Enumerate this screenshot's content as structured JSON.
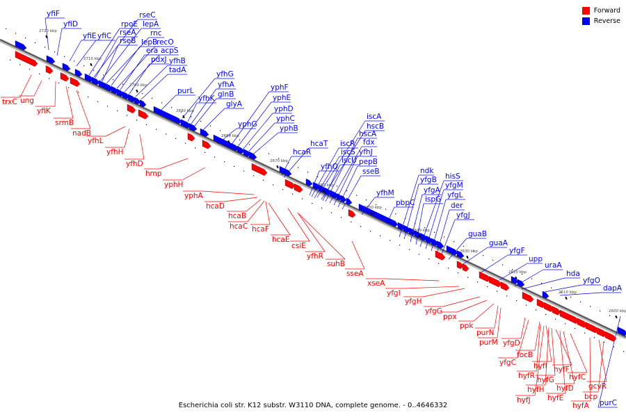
{
  "legend": {
    "forward_label": "Forward",
    "reverse_label": "Reverse",
    "forward_color": "#ff0000",
    "reverse_color": "#0000ff"
  },
  "caption": "Escherichia coli str. K12 substr. W3110 DNA, complete genome. - 0..4646332",
  "ticks": [
    {
      "label": "2720 kbp",
      "kbp": 2720
    },
    {
      "label": "2710 kbp",
      "kbp": 2710
    },
    {
      "label": "2700 kbp",
      "kbp": 2700
    },
    {
      "label": "2690 kbp",
      "kbp": 2690
    },
    {
      "label": "2680 kbp",
      "kbp": 2680
    },
    {
      "label": "2670 kbp",
      "kbp": 2670
    },
    {
      "label": "2660 kbp",
      "kbp": 2660
    },
    {
      "label": "2650 kbp",
      "kbp": 2650
    },
    {
      "label": "2640 kbp",
      "kbp": 2640
    },
    {
      "label": "2630 kbp",
      "kbp": 2630
    },
    {
      "label": "2620 kbp",
      "kbp": 2620
    },
    {
      "label": "2610 kbp",
      "kbp": 2610
    },
    {
      "label": "2600 kbp",
      "kbp": 2600
    }
  ],
  "reverse_genes": [
    "yfiF",
    "yfiD",
    "yfiE",
    "yfiC",
    "rpoE",
    "rseC",
    "rseA",
    "lepA",
    "rseB",
    "rnc",
    "lepB",
    "recO",
    "era",
    "acpS",
    "pdxJ",
    "yfhB",
    "tadA",
    "purL",
    "yfhG",
    "yfhK",
    "yfhA",
    "glnB",
    "glyA",
    "yphF",
    "yphE",
    "yphG",
    "yphD",
    "yphC",
    "yphB",
    "hcaT",
    "hcaR",
    "iscA",
    "hscB",
    "hscA",
    "iscR",
    "fdx",
    "iscS",
    "yfhJ",
    "yfhQ",
    "iscU",
    "pepB",
    "sseB",
    "ndk",
    "yfhM",
    "yfgB",
    "hisS",
    "pbpC",
    "yfgA",
    "yfgM",
    "ispG",
    "yfgL",
    "der",
    "yfgJ",
    "guaB",
    "guaA",
    "yfgF",
    "upp",
    "uraA",
    "hda",
    "yfgO",
    "dapA",
    "purC"
  ],
  "forward_genes": [
    "trxC",
    "ung",
    "yfiK",
    "srmB",
    "nadB",
    "yfhL",
    "yfhH",
    "yfhD",
    "hmp",
    "yphH",
    "yphA",
    "hcaD",
    "hcaB",
    "hcaC",
    "hcaF",
    "hcaE",
    "csiE",
    "yfhR",
    "suhB",
    "sseA",
    "xseA",
    "yfgI",
    "yfgH",
    "yfgG",
    "ppx",
    "ppk",
    "purN",
    "purM",
    "yfgD",
    "focB",
    "yfgC",
    "hyfI",
    "hyfR",
    "hyfF",
    "hyfG",
    "hyfC",
    "hyfH",
    "hyfD",
    "hyfE",
    "gcvR",
    "hyfJ",
    "bcp",
    "hyfA"
  ]
}
